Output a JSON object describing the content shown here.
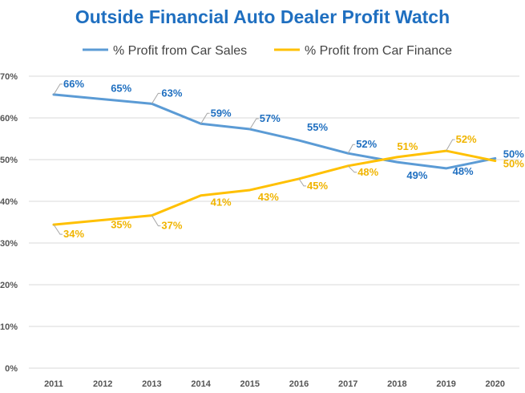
{
  "chart_data": {
    "type": "line",
    "title": "Outside Financial Auto Dealer Profit Watch",
    "xlabel": "",
    "ylabel": "",
    "x": [
      "2011",
      "2012",
      "2013",
      "2014",
      "2015",
      "2016",
      "2017",
      "2018",
      "2019",
      "2020"
    ],
    "ylim": [
      0,
      70
    ],
    "yticks": [
      "0%",
      "10%",
      "20%",
      "30%",
      "40%",
      "50%",
      "60%",
      "70%"
    ],
    "grid": true,
    "legend": "top",
    "series": [
      {
        "name": "% Profit from Car Sales",
        "color": "#5b9bd5",
        "label_color": "#1f6fc0",
        "values": [
          65.6,
          64.5,
          63.4,
          58.6,
          57.3,
          54.6,
          51.5,
          49.4,
          47.9,
          50.3
        ],
        "labels": [
          "66%",
          "65%",
          "63%",
          "59%",
          "57%",
          "55%",
          "52%",
          "49%",
          "48%",
          "50%"
        ]
      },
      {
        "name": "% Profit from Car Finance",
        "color": "#ffc000",
        "label_color": "#f0b400",
        "values": [
          34.4,
          35.5,
          36.6,
          41.4,
          42.7,
          45.4,
          48.5,
          50.6,
          52.1,
          49.7
        ],
        "labels": [
          "34%",
          "35%",
          "37%",
          "41%",
          "43%",
          "45%",
          "48%",
          "51%",
          "52%",
          "50%"
        ]
      }
    ]
  }
}
